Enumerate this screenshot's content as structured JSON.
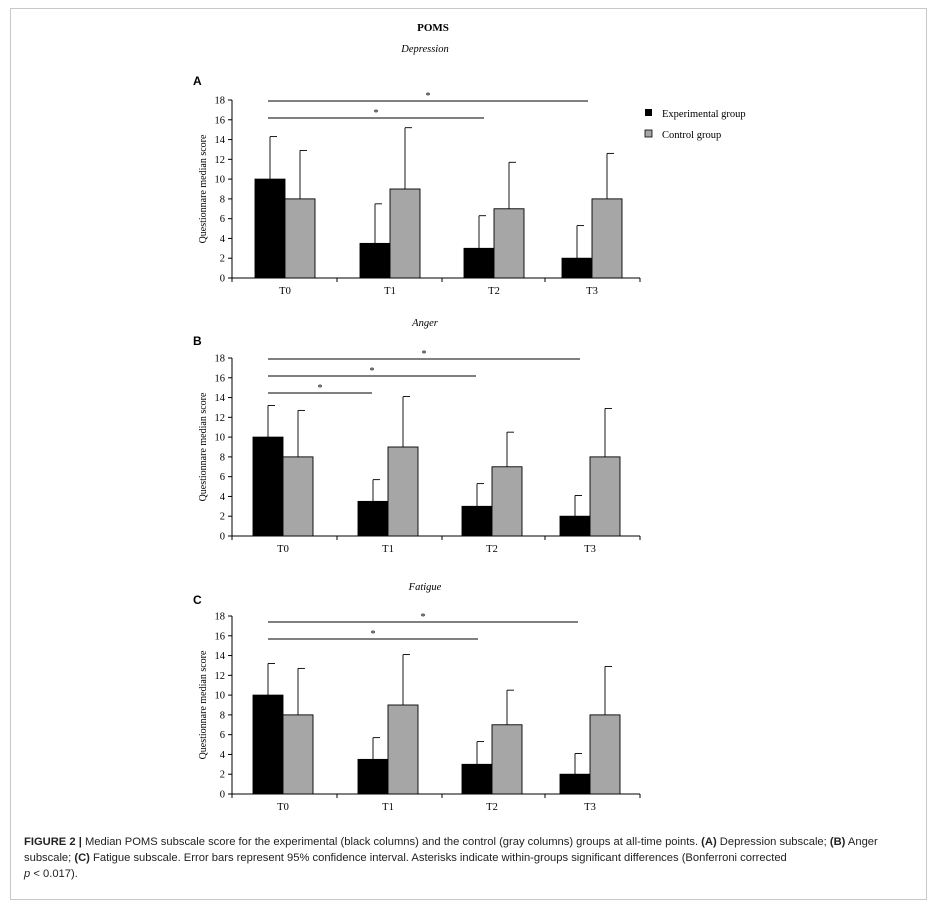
{
  "figure_title": "POMS",
  "legend": {
    "experimental": "Experimental group",
    "control": "Control group"
  },
  "colors": {
    "experimental": "#000000",
    "control": "#a6a6a6"
  },
  "chart_data": [
    {
      "type": "bar",
      "panel": "A",
      "title": "Depression",
      "ylabel": "Questionnare median score",
      "ylim": [
        0,
        18
      ],
      "yticks": [
        "0",
        "2",
        "4",
        "6",
        "8",
        "10",
        "12",
        "14",
        "16",
        "18"
      ],
      "categories": [
        "T0",
        "T1",
        "T2",
        "T3"
      ],
      "series": [
        {
          "name": "Experimental group",
          "values": [
            10,
            3.5,
            3,
            2
          ],
          "error_upper": [
            14.3,
            7.5,
            6.3,
            5.3
          ]
        },
        {
          "name": "Control group",
          "values": [
            8,
            9,
            7,
            8
          ],
          "error_upper": [
            12.9,
            15.2,
            11.7,
            12.6
          ]
        }
      ],
      "significance": [
        {
          "from": "T0",
          "to": "T3",
          "label": "*"
        },
        {
          "from": "T0",
          "to": "T2",
          "label": "*"
        }
      ]
    },
    {
      "type": "bar",
      "panel": "B",
      "title": "Anger",
      "ylabel": "Questionnare median score",
      "ylim": [
        0,
        18
      ],
      "yticks": [
        "0",
        "2",
        "4",
        "6",
        "8",
        "10",
        "12",
        "14",
        "16",
        "18"
      ],
      "categories": [
        "T0",
        "T1",
        "T2",
        "T3"
      ],
      "series": [
        {
          "name": "Experimental group",
          "values": [
            10,
            3.5,
            3,
            2
          ],
          "error_upper": [
            13.2,
            5.7,
            5.3,
            4.1
          ]
        },
        {
          "name": "Control group",
          "values": [
            8,
            9,
            7,
            8
          ],
          "error_upper": [
            12.7,
            14.1,
            10.5,
            12.9
          ]
        }
      ],
      "significance": [
        {
          "from": "T0",
          "to": "T3",
          "label": "*"
        },
        {
          "from": "T0",
          "to": "T2",
          "label": "*"
        },
        {
          "from": "T0",
          "to": "T1",
          "label": "*"
        }
      ]
    },
    {
      "type": "bar",
      "panel": "C",
      "title": "Fatigue",
      "ylabel": "Questionnare median score",
      "ylim": [
        0,
        18
      ],
      "yticks": [
        "0",
        "2",
        "4",
        "6",
        "8",
        "10",
        "12",
        "14",
        "16",
        "18"
      ],
      "categories": [
        "T0",
        "T1",
        "T2",
        "T3"
      ],
      "series": [
        {
          "name": "Experimental group",
          "values": [
            10,
            3.5,
            3,
            2
          ],
          "error_upper": [
            13.2,
            5.7,
            5.3,
            4.1
          ]
        },
        {
          "name": "Control group",
          "values": [
            8,
            9,
            7,
            8
          ],
          "error_upper": [
            12.7,
            14.1,
            10.5,
            12.9
          ]
        }
      ],
      "significance": [
        {
          "from": "T0",
          "to": "T3",
          "label": "*"
        },
        {
          "from": "T0",
          "to": "T2",
          "label": "*"
        }
      ]
    }
  ],
  "caption": {
    "label": "FIGURE 2 |",
    "text1": " Median POMS subscale score for the experimental (black columns) and the control (gray columns) groups at all-time points. ",
    "a": "(A)",
    "text2": " Depression subscale; ",
    "b": "(B)",
    "text3": " Anger subscale; ",
    "c": "(C)",
    "text4": " Fatigue subscale. Error bars represent 95% confidence interval. Asterisks indicate within-groups significant differences (Bonferroni corrected ",
    "p": "p",
    "text5": " < 0.017)."
  }
}
